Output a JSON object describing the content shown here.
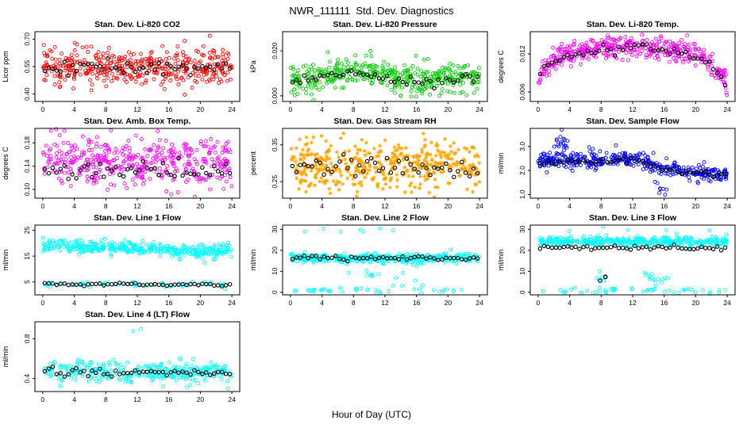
{
  "page": {
    "title": "NWR_111111  Std. Dev. Diagnostics",
    "xlabel": "Hour of Day (UTC)"
  },
  "colors": {
    "red": "#FF0000",
    "green": "#00CD00",
    "magenta": "#FF00FF",
    "orange": "#FFA500",
    "blue": "#0000FF",
    "cyan": "#00FFFF",
    "black": "#000000"
  },
  "chart_data": {
    "type": "scatter",
    "x": {
      "label": "Hour of Day (UTC)",
      "range": [
        0,
        24
      ],
      "ticks": [
        0,
        4,
        8,
        12,
        16,
        20,
        24
      ],
      "tick_labels": [
        "0",
        "4",
        "8",
        "12",
        "16",
        "20",
        "24"
      ]
    },
    "plots": [
      {
        "id": "li820-co2",
        "title": "Stan. Dev. Li-820 CO2",
        "ylabel": "Licor ppm",
        "ylim": [
          0.36,
          0.74
        ],
        "yticks": [
          0.4,
          0.55,
          0.7
        ],
        "ytick_labels": [
          "0.40",
          "0.55",
          "0.70"
        ],
        "seed": 11,
        "clusters": [
          {
            "color": "#FF0000",
            "marker": "circle",
            "n": 430,
            "x_range": [
              0,
              24
            ],
            "trend": [
              [
                0,
                0.545
              ],
              [
                24,
                0.545
              ]
            ],
            "sd": 0.05
          },
          {
            "color": "#000000",
            "marker": "circle",
            "step": 0.5,
            "trend": [
              [
                0,
                0.54
              ],
              [
                24,
                0.54
              ]
            ],
            "sd": 0.018
          }
        ]
      },
      {
        "id": "li820-pressure",
        "title": "Stan. Dev. Li-820 Pressure",
        "ylabel": "kPa",
        "ylim": [
          -0.0025,
          0.0285
        ],
        "yticks": [
          0.0,
          0.02
        ],
        "ytick_labels": [
          "0.000",
          "0.020"
        ],
        "seed": 22,
        "clusters": [
          {
            "color": "#00CD00",
            "marker": "circle",
            "n": 430,
            "x_range": [
              0,
              24
            ],
            "trend": [
              [
                0,
                0.007
              ],
              [
                4,
                0.0085
              ],
              [
                8,
                0.0105
              ],
              [
                10,
                0.0115
              ],
              [
                13,
                0.009
              ],
              [
                16,
                0.0065
              ],
              [
                20,
                0.008
              ],
              [
                24,
                0.0085
              ]
            ],
            "sd": 0.0032
          },
          {
            "color": "#000000",
            "marker": "circle",
            "step": 0.5,
            "trend": [
              [
                0,
                0.0075
              ],
              [
                8,
                0.0098
              ],
              [
                12,
                0.009
              ],
              [
                16,
                0.0062
              ],
              [
                20,
                0.0078
              ],
              [
                24,
                0.008
              ]
            ],
            "sd": 0.0013
          }
        ]
      },
      {
        "id": "li820-temp",
        "title": "Stan. Dev. Li-820 Temp.",
        "ylabel": "degrees C",
        "ylim": [
          0.0045,
          0.0155
        ],
        "yticks": [
          0.006,
          0.012
        ],
        "ytick_labels": [
          "0.006",
          "0.012"
        ],
        "seed": 33,
        "clusters": [
          {
            "color": "#FF00FF",
            "marker": "circle",
            "n": 440,
            "x_range": [
              0,
              24
            ],
            "trend": [
              [
                0,
                0.0085
              ],
              [
                1.5,
                0.0105
              ],
              [
                4,
                0.0122
              ],
              [
                8,
                0.013
              ],
              [
                12,
                0.0131
              ],
              [
                16,
                0.0128
              ],
              [
                19,
                0.0122
              ],
              [
                21,
                0.0112
              ],
              [
                22.5,
                0.0092
              ],
              [
                24,
                0.0078
              ]
            ],
            "sd": 0.0009
          },
          {
            "color": "#000000",
            "marker": "circle",
            "step": 0.5,
            "trend": [
              [
                0,
                0.0083
              ],
              [
                1.5,
                0.0102
              ],
              [
                4,
                0.012
              ],
              [
                8,
                0.0128
              ],
              [
                12,
                0.0129
              ],
              [
                16,
                0.0126
              ],
              [
                19,
                0.012
              ],
              [
                21,
                0.011
              ],
              [
                22.5,
                0.009
              ],
              [
                24,
                0.0076
              ]
            ],
            "sd": 0.0004
          }
        ]
      },
      {
        "id": "amb-box-temp",
        "title": "Stan. Dev. Amb. Box Temp.",
        "ylabel": "degrees C",
        "ylim": [
          0.085,
          0.205
        ],
        "yticks": [
          0.1,
          0.14,
          0.18
        ],
        "ytick_labels": [
          "0.10",
          "0.14",
          "0.18"
        ],
        "seed": 44,
        "clusters": [
          {
            "color": "#FF00FF",
            "marker": "circle",
            "n": 430,
            "x_range": [
              0,
              24
            ],
            "trend": [
              [
                0,
                0.147
              ],
              [
                24,
                0.143
              ]
            ],
            "sd": 0.021
          },
          {
            "color": "#000000",
            "marker": "circle",
            "step": 0.5,
            "trend": [
              [
                0,
                0.134
              ],
              [
                24,
                0.131
              ]
            ],
            "sd": 0.008
          }
        ]
      },
      {
        "id": "gas-stream-rh",
        "title": "Stan. Dev. Gas Stream RH",
        "ylabel": "percent",
        "ylim": [
          0.205,
          0.395
        ],
        "yticks": [
          0.25,
          0.35
        ],
        "ytick_labels": [
          "0.25",
          "0.35"
        ],
        "seed": 55,
        "clusters": [
          {
            "color": "#FFA500",
            "marker": "asterisk",
            "n": 430,
            "x_range": [
              0,
              24
            ],
            "trend": [
              [
                0,
                0.295
              ],
              [
                24,
                0.292
              ]
            ],
            "sd": 0.034
          },
          {
            "color": "#000000",
            "marker": "circle",
            "step": 0.5,
            "trend": [
              [
                0,
                0.29
              ],
              [
                24,
                0.288
              ]
            ],
            "sd": 0.014
          }
        ]
      },
      {
        "id": "sample-flow",
        "title": "Stan. Dev. Sample Flow",
        "ylabel": "ml/min",
        "ylim": [
          0.85,
          3.75
        ],
        "yticks": [
          1.0,
          2.0,
          3.0
        ],
        "ytick_labels": [
          "1.0",
          "2.0",
          "3.0"
        ],
        "seed": 66,
        "clusters": [
          {
            "color": "#0000FF",
            "marker": "circle",
            "n": 400,
            "x_range": [
              0,
              24
            ],
            "trend": [
              [
                0,
                2.35
              ],
              [
                1.5,
                2.45
              ],
              [
                4,
                2.45
              ],
              [
                8,
                2.4
              ],
              [
                11,
                2.5
              ],
              [
                13.5,
                2.45
              ],
              [
                15,
                2.2
              ],
              [
                16,
                2.05
              ],
              [
                18,
                2.0
              ],
              [
                20,
                1.9
              ],
              [
                22,
                1.85
              ],
              [
                24,
                1.8
              ]
            ],
            "sd": 0.16
          },
          {
            "color": "#0000FF",
            "marker": "circle",
            "n": 22,
            "x_range": [
              2.0,
              3.8
            ],
            "trend": [
              [
                2.0,
                3.05
              ],
              [
                3.8,
                3.0
              ]
            ],
            "sd": 0.28
          },
          {
            "color": "#0000FF",
            "marker": "circle",
            "n": 8,
            "x_range": [
              14.8,
              16.8
            ],
            "trend": [
              [
                14.8,
                1.35
              ],
              [
                16.8,
                1.3
              ]
            ],
            "sd": 0.18
          },
          {
            "color": "#000000",
            "marker": "circle",
            "step": 0.5,
            "trend": [
              [
                0,
                2.3
              ],
              [
                4,
                2.4
              ],
              [
                8,
                2.35
              ],
              [
                12,
                2.45
              ],
              [
                14,
                2.3
              ],
              [
                16,
                2.0
              ],
              [
                20,
                1.88
              ],
              [
                24,
                1.78
              ]
            ],
            "sd": 0.07
          }
        ]
      },
      {
        "id": "line1-flow",
        "title": "Stan. Dev. Line 1 Flow",
        "ylabel": "ml/min",
        "ylim": [
          0,
          27
        ],
        "yticks": [
          5,
          15,
          25
        ],
        "ytick_labels": [
          "5",
          "15",
          "25"
        ],
        "seed": 77,
        "clusters": [
          {
            "color": "#00FFFF",
            "marker": "circle",
            "n": 400,
            "x_range": [
              0,
              24
            ],
            "trend": [
              [
                0,
                18.8
              ],
              [
                10,
                18.4
              ],
              [
                15.5,
                17.8
              ],
              [
                16.5,
                16.9
              ],
              [
                24,
                17.3
              ]
            ],
            "sd": 1.25
          },
          {
            "color": "#00FFFF",
            "marker": "circle",
            "n": 55,
            "x_range": [
              0,
              24
            ],
            "trend": [
              [
                0,
                4.3
              ],
              [
                24,
                3.7
              ]
            ],
            "sd": 0.6
          },
          {
            "color": "#000000",
            "marker": "circle",
            "step": 0.5,
            "trend": [
              [
                0,
                4.3
              ],
              [
                24,
                3.8
              ]
            ],
            "sd": 0.3
          }
        ]
      },
      {
        "id": "line2-flow",
        "title": "Stan. Dev. Line 2 Flow",
        "ylabel": "ml/min",
        "ylim": [
          -1.2,
          32
        ],
        "yticks": [
          0,
          10,
          20,
          30
        ],
        "ytick_labels": [
          "0",
          "10",
          "20",
          "30"
        ],
        "seed": 88,
        "clusters": [
          {
            "color": "#00FFFF",
            "marker": "circle",
            "n": 380,
            "x_range": [
              0,
              24
            ],
            "trend": [
              [
                0,
                16.3
              ],
              [
                24,
                16.0
              ]
            ],
            "sd": 1.1
          },
          {
            "color": "#00FFFF",
            "marker": "circle",
            "n": 40,
            "x_range": [
              0,
              24
            ],
            "trend": [
              [
                0,
                0.7
              ],
              [
                24,
                0.6
              ]
            ],
            "sd": 0.6
          },
          {
            "color": "#00FFFF",
            "marker": "circle",
            "n": 16,
            "x_range": [
              7,
              17
            ],
            "trend": [
              [
                7,
                7
              ],
              [
                17,
                6
              ]
            ],
            "sd": 3.2
          },
          {
            "color": "#00FFFF",
            "marker": "circle",
            "n": 7,
            "x_range": [
              1,
              23
            ],
            "trend": [
              [
                1,
                29.6
              ],
              [
                23,
                29.6
              ]
            ],
            "sd": 0.7
          },
          {
            "color": "#000000",
            "marker": "circle",
            "step": 0.5,
            "trend": [
              [
                0,
                16.4
              ],
              [
                24,
                16.2
              ]
            ],
            "sd": 0.5
          }
        ]
      },
      {
        "id": "line3-flow",
        "title": "Stan. Dev. Line 3 Flow",
        "ylabel": "ml/min",
        "ylim": [
          -1.2,
          32
        ],
        "yticks": [
          0,
          10,
          20,
          30
        ],
        "ytick_labels": [
          "0",
          "10",
          "20",
          "30"
        ],
        "seed": 99,
        "clusters": [
          {
            "color": "#00FFFF",
            "marker": "circle",
            "n": 380,
            "x_range": [
              0,
              24
            ],
            "trend": [
              [
                0,
                24.4
              ],
              [
                24,
                24.0
              ]
            ],
            "sd": 1.2
          },
          {
            "color": "#00FFFF",
            "marker": "circle",
            "n": 48,
            "x_range": [
              0,
              24
            ],
            "trend": [
              [
                0,
                0.9
              ],
              [
                24,
                0.7
              ]
            ],
            "sd": 0.7
          },
          {
            "color": "#00FFFF",
            "marker": "circle",
            "n": 14,
            "x_range": [
              13.5,
              16.5
            ],
            "trend": [
              [
                13.5,
                6
              ],
              [
                16.5,
                5
              ]
            ],
            "sd": 2.6
          },
          {
            "color": "#00FFFF",
            "marker": "circle",
            "n": 6,
            "x_range": [
              7.4,
              8.8
            ],
            "trend": [
              [
                7.4,
                7
              ],
              [
                8.8,
                6.5
              ]
            ],
            "sd": 2.0
          },
          {
            "color": "#00FFFF",
            "marker": "circle",
            "n": 5,
            "x_range": [
              2,
              23
            ],
            "trend": [
              [
                2,
                29.6
              ],
              [
                23,
                29.6
              ]
            ],
            "sd": 0.7
          },
          {
            "color": "#000000",
            "marker": "circle",
            "step": 0.5,
            "trend": [
              [
                0,
                21.4
              ],
              [
                24,
                21.0
              ]
            ],
            "sd": 0.5
          },
          {
            "color": "#000000",
            "marker": "circle",
            "n": 3,
            "x_range": [
              7.6,
              8.6
            ],
            "trend": [
              [
                7.6,
                7.5
              ],
              [
                8.6,
                7
              ]
            ],
            "sd": 1.2
          }
        ]
      },
      {
        "id": "line4-lt-flow",
        "title": "Stan. Dev. Line 4 (LT) Flow",
        "ylabel": "ml/min",
        "ylim": [
          0.27,
          0.97
        ],
        "yticks": [
          0.4,
          0.8
        ],
        "ytick_labels": [
          "0.4",
          "0.8"
        ],
        "seed": 110,
        "clusters": [
          {
            "color": "#00FFFF",
            "marker": "circle",
            "n": 330,
            "x_range": [
              0,
              24
            ],
            "trend": [
              [
                0,
                0.472
              ],
              [
                24,
                0.462
              ]
            ],
            "sd": 0.055
          },
          {
            "color": "#00FFFF",
            "marker": "circle",
            "n": 2,
            "x_range": [
              11.5,
              13
            ],
            "trend": [
              [
                11.5,
                0.88
              ],
              [
                13,
                0.86
              ]
            ],
            "sd": 0.03
          },
          {
            "color": "#000000",
            "marker": "circle",
            "step": 0.5,
            "trend": [
              [
                0,
                0.468
              ],
              [
                24,
                0.46
              ]
            ],
            "sd": 0.028
          }
        ]
      }
    ]
  }
}
